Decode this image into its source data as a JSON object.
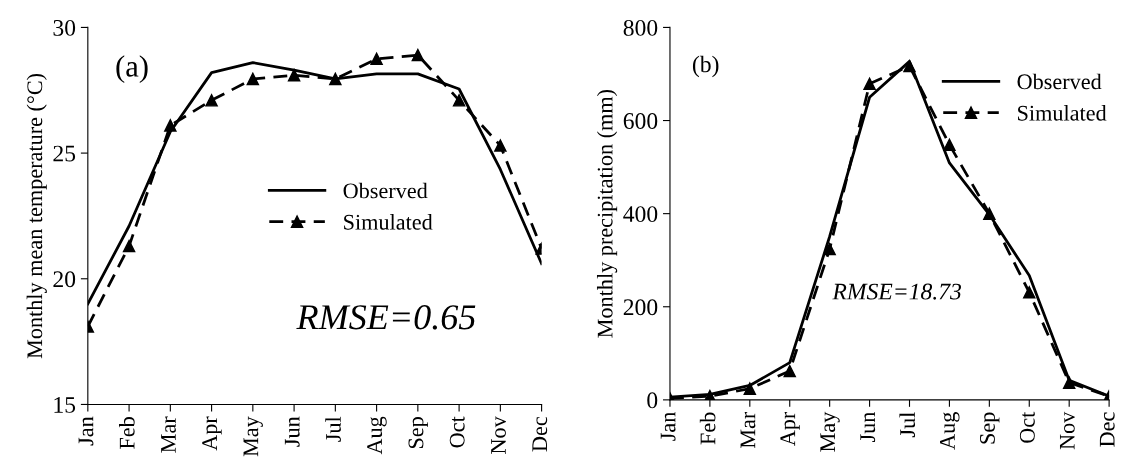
{
  "chart_data": [
    {
      "type": "line",
      "ylabel": "Monthly mean temperature (°C)",
      "categories": [
        "Jan",
        "Feb",
        "Mar",
        "Apr",
        "May",
        "Jun",
        "Jul",
        "Aug",
        "Sep",
        "Oct",
        "Nov",
        "Dec"
      ],
      "ylim": [
        15,
        30
      ],
      "yticks": [
        15,
        20,
        25,
        30
      ],
      "grid": false,
      "legend": "center",
      "annotations": [
        "(a)",
        "RMSE=0.65"
      ],
      "series": [
        {
          "name": "Observed",
          "color": "#000000",
          "line_style": "solid",
          "marker": "none",
          "values": [
            19.0,
            22.1,
            25.85,
            28.2,
            28.6,
            28.3,
            27.95,
            28.15,
            28.15,
            27.55,
            24.35,
            20.6
          ]
        },
        {
          "name": "Simulated",
          "color": "#000000",
          "line_style": "dashed",
          "marker": "triangle",
          "values": [
            18.1,
            21.3,
            26.1,
            27.1,
            27.95,
            28.1,
            27.95,
            28.75,
            28.9,
            27.1,
            25.3,
            21.2
          ]
        }
      ]
    },
    {
      "type": "line",
      "ylabel": "Monthly precipitation (mm)",
      "categories": [
        "Jan",
        "Feb",
        "Mar",
        "Apr",
        "May",
        "Jun",
        "Jul",
        "Aug",
        "Sep",
        "Oct",
        "Nov",
        "Dec"
      ],
      "ylim": [
        0,
        800
      ],
      "yticks": [
        0,
        200,
        400,
        600,
        800
      ],
      "grid": false,
      "legend": "top right",
      "annotations": [
        "(b)",
        "RMSE=18.73"
      ],
      "series": [
        {
          "name": "Observed",
          "color": "#000000",
          "line_style": "solid",
          "marker": "none",
          "values": [
            6,
            12,
            31,
            80,
            351,
            650,
            727,
            509,
            398,
            267,
            42,
            8
          ]
        },
        {
          "name": "Simulated",
          "color": "#000000",
          "line_style": "dashed",
          "marker": "triangle",
          "values": [
            3,
            8,
            24,
            62,
            324,
            679,
            717,
            548,
            400,
            231,
            37,
            8
          ]
        }
      ]
    }
  ]
}
